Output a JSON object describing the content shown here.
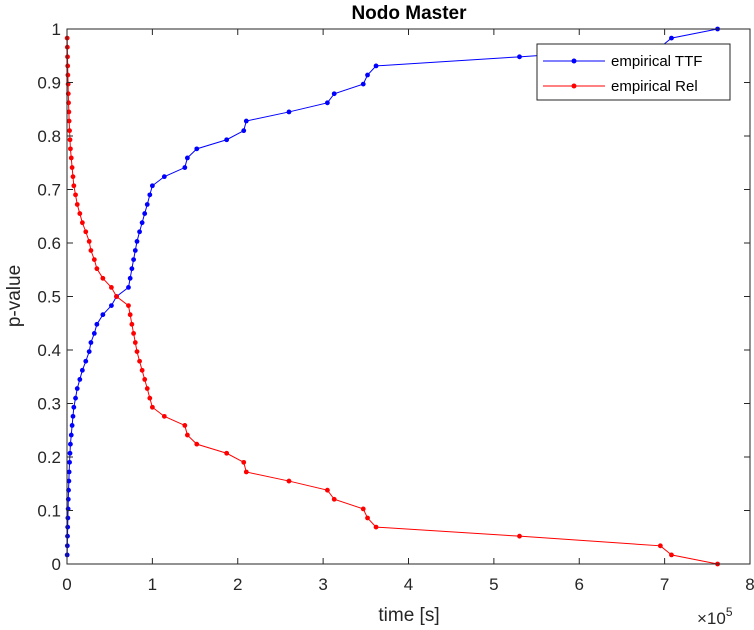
{
  "chart_data": {
    "type": "line",
    "title": "Nodo Master",
    "xlabel": "time [s]",
    "ylabel": "p-value",
    "x_exponent_base": "×10",
    "x_exponent_power": "5",
    "xlim": [
      0,
      8
    ],
    "ylim": [
      0,
      1
    ],
    "xticks": [
      0,
      1,
      2,
      3,
      4,
      5,
      6,
      7,
      8
    ],
    "yticks": [
      0,
      0.1,
      0.2,
      0.3,
      0.4,
      0.5,
      0.6,
      0.7,
      0.8,
      0.9,
      1
    ],
    "grid": false,
    "legend_position": "top-right",
    "series": [
      {
        "name": "empirical TTF",
        "color": "#0000ff",
        "x": [
          0.002,
          0.004,
          0.006,
          0.008,
          0.01,
          0.013,
          0.015,
          0.018,
          0.022,
          0.025,
          0.03,
          0.035,
          0.04,
          0.05,
          0.06,
          0.07,
          0.08,
          0.1,
          0.12,
          0.15,
          0.18,
          0.22,
          0.26,
          0.28,
          0.32,
          0.35,
          0.42,
          0.52,
          0.58,
          0.72,
          0.74,
          0.76,
          0.78,
          0.8,
          0.82,
          0.85,
          0.88,
          0.91,
          0.94,
          0.97,
          1.0,
          1.14,
          1.38,
          1.41,
          1.52,
          1.87,
          2.07,
          2.1,
          2.6,
          3.05,
          3.13,
          3.47,
          3.52,
          3.62,
          5.3,
          6.95,
          7.08,
          7.62
        ],
        "y": [
          0.017,
          0.034,
          0.052,
          0.069,
          0.086,
          0.103,
          0.121,
          0.138,
          0.155,
          0.172,
          0.19,
          0.207,
          0.224,
          0.241,
          0.259,
          0.276,
          0.293,
          0.31,
          0.328,
          0.345,
          0.362,
          0.379,
          0.397,
          0.414,
          0.431,
          0.448,
          0.466,
          0.483,
          0.5,
          0.517,
          0.534,
          0.552,
          0.569,
          0.586,
          0.603,
          0.621,
          0.638,
          0.655,
          0.672,
          0.69,
          0.707,
          0.724,
          0.741,
          0.759,
          0.776,
          0.793,
          0.81,
          0.828,
          0.845,
          0.862,
          0.879,
          0.897,
          0.914,
          0.931,
          0.948,
          0.966,
          0.983,
          1.0
        ]
      },
      {
        "name": "empirical Rel",
        "color": "#ff0000",
        "x": [
          0.002,
          0.004,
          0.006,
          0.008,
          0.01,
          0.013,
          0.015,
          0.018,
          0.022,
          0.025,
          0.03,
          0.035,
          0.04,
          0.05,
          0.06,
          0.07,
          0.08,
          0.1,
          0.12,
          0.15,
          0.18,
          0.22,
          0.26,
          0.28,
          0.32,
          0.35,
          0.42,
          0.52,
          0.58,
          0.72,
          0.74,
          0.76,
          0.78,
          0.8,
          0.82,
          0.85,
          0.88,
          0.91,
          0.94,
          0.97,
          1.0,
          1.14,
          1.38,
          1.41,
          1.52,
          1.87,
          2.07,
          2.1,
          2.6,
          3.05,
          3.13,
          3.47,
          3.52,
          3.62,
          5.3,
          6.95,
          7.08,
          7.62
        ],
        "y": [
          0.983,
          0.966,
          0.948,
          0.931,
          0.914,
          0.897,
          0.879,
          0.862,
          0.845,
          0.828,
          0.81,
          0.793,
          0.776,
          0.759,
          0.741,
          0.724,
          0.707,
          0.69,
          0.672,
          0.655,
          0.638,
          0.621,
          0.603,
          0.586,
          0.569,
          0.552,
          0.534,
          0.517,
          0.5,
          0.483,
          0.466,
          0.448,
          0.431,
          0.414,
          0.397,
          0.379,
          0.362,
          0.345,
          0.328,
          0.31,
          0.293,
          0.276,
          0.259,
          0.241,
          0.224,
          0.207,
          0.19,
          0.172,
          0.155,
          0.138,
          0.121,
          0.103,
          0.086,
          0.069,
          0.052,
          0.034,
          0.017,
          0.0
        ]
      }
    ]
  }
}
